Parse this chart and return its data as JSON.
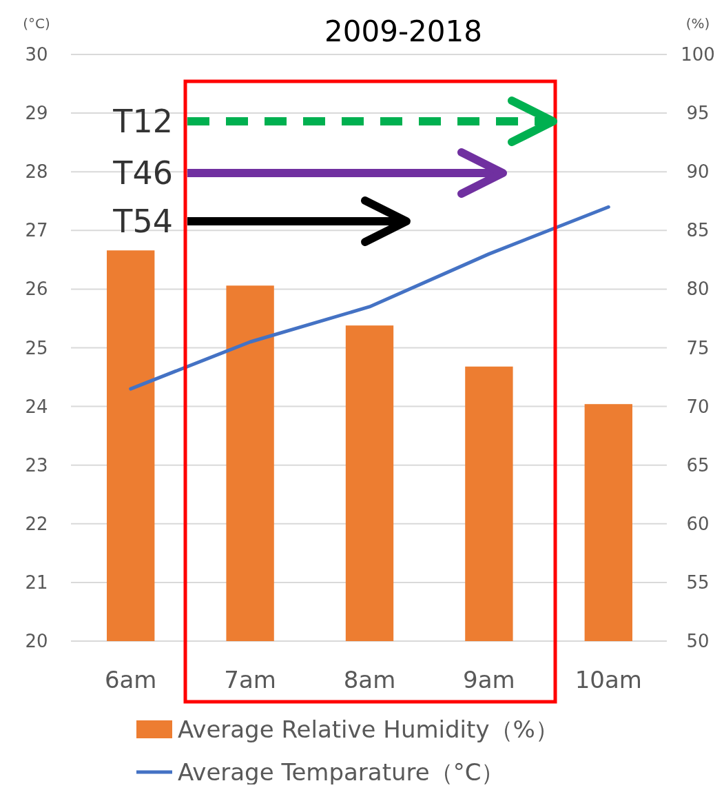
{
  "chart_data": {
    "type": "bar",
    "title": "2009-2018",
    "ylabel": "(°C)",
    "y2label": "(%)",
    "categories": [
      "6am",
      "7am",
      "8am",
      "9am",
      "10am"
    ],
    "series": [
      {
        "name": "Average Relative Humidity（%）",
        "axis": "y2",
        "color": "#ed7d31",
        "values": [
          83.3,
          80.3,
          76.9,
          73.4,
          70.2
        ]
      },
      {
        "name": "Average Temparature（°C）",
        "type": "line",
        "axis": "y",
        "color": "#4472c4",
        "values": [
          24.3,
          25.1,
          25.7,
          26.6,
          27.4
        ]
      }
    ],
    "ylim": [
      20,
      30
    ],
    "yticks": [
      20,
      21,
      22,
      23,
      24,
      25,
      26,
      27,
      28,
      29,
      30
    ],
    "y2lim": [
      50,
      100
    ],
    "y2ticks": [
      50,
      55,
      60,
      65,
      70,
      75,
      80,
      85,
      90,
      95,
      100
    ],
    "grid": "y",
    "legend": "bottom",
    "marker": "none",
    "annotations": [
      "T12",
      "T46",
      "T54"
    ]
  }
}
